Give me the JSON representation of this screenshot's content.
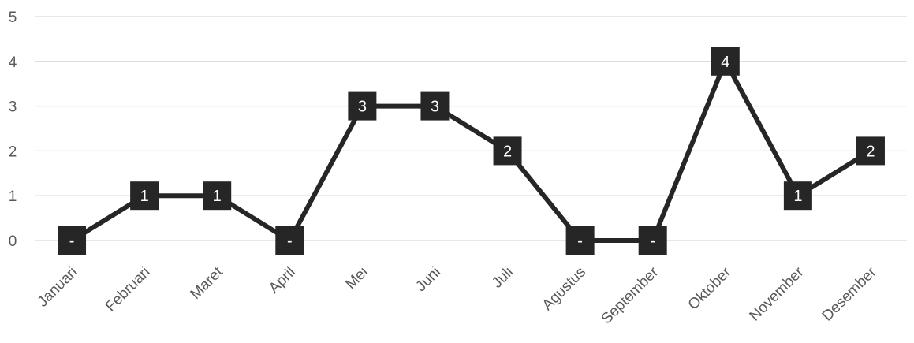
{
  "chart_data": {
    "type": "line",
    "title": "",
    "xlabel": "",
    "ylabel": "",
    "categories": [
      "Januari",
      "Februari",
      "Maret",
      "April",
      "Mei",
      "Juni",
      "Juli",
      "Agustus",
      "September",
      "Oktober",
      "November",
      "Desember"
    ],
    "series": [
      {
        "values": [
          0,
          1,
          1,
          0,
          3,
          3,
          2,
          0,
          0,
          4,
          1,
          2
        ],
        "data_labels": [
          "-",
          "1",
          "1",
          "-",
          "3",
          "3",
          "2",
          "-",
          "-",
          "4",
          "1",
          "2"
        ],
        "color": "#262626"
      }
    ],
    "ylim": [
      0,
      5
    ],
    "y_ticks": [
      "0",
      "1",
      "2",
      "3",
      "4",
      "5"
    ],
    "grid": true,
    "legend": "none",
    "colors": {
      "line": "#262626",
      "gridline": "#d9d9d9",
      "tick_text": "#595959",
      "label_box": "#262626",
      "label_text": "#ffffff"
    }
  }
}
